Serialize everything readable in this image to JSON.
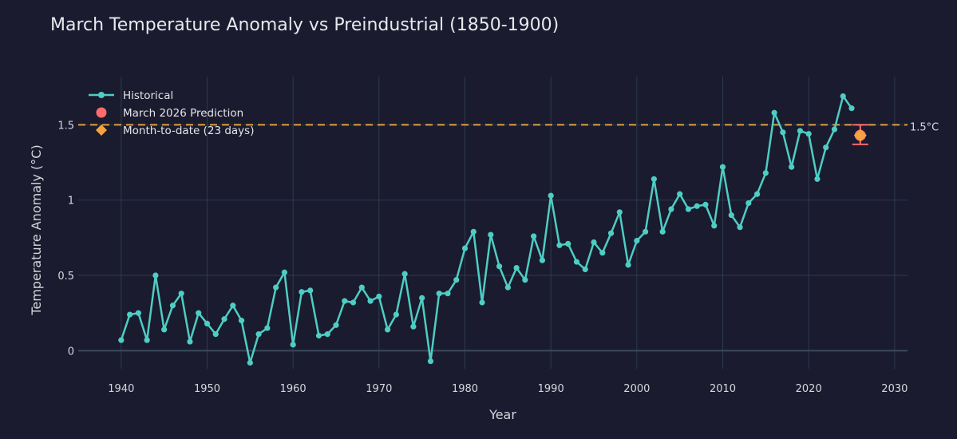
{
  "chart_data": {
    "type": "line",
    "title": "March Temperature Anomaly vs Preindustrial (1850-1900)",
    "xlabel": "Year",
    "ylabel": "Temperature Anomaly (°C)",
    "xlim": [
      1935,
      2031.5
    ],
    "ylim": [
      -0.12,
      1.82
    ],
    "x_ticks": [
      1940,
      1950,
      1960,
      1970,
      1980,
      1990,
      2000,
      2010,
      2020,
      2030
    ],
    "y_ticks": [
      0,
      0.5,
      1,
      1.5
    ],
    "y_tick_labels": [
      "0",
      "0.5",
      "1",
      "1.5"
    ],
    "grid": true,
    "legend_position": "top-left",
    "threshold": {
      "value": 1.5,
      "label": "1.5°C",
      "color": "#e0a040"
    },
    "series": [
      {
        "name": "Historical",
        "color": "#4ecdc4",
        "x": [
          1940,
          1941,
          1942,
          1943,
          1944,
          1945,
          1946,
          1947,
          1948,
          1949,
          1950,
          1951,
          1952,
          1953,
          1954,
          1955,
          1956,
          1957,
          1958,
          1959,
          1960,
          1961,
          1962,
          1963,
          1964,
          1965,
          1966,
          1967,
          1968,
          1969,
          1970,
          1971,
          1972,
          1973,
          1974,
          1975,
          1976,
          1977,
          1978,
          1979,
          1980,
          1981,
          1982,
          1983,
          1984,
          1985,
          1986,
          1987,
          1988,
          1989,
          1990,
          1991,
          1992,
          1993,
          1994,
          1995,
          1996,
          1997,
          1998,
          1999,
          2000,
          2001,
          2002,
          2003,
          2004,
          2005,
          2006,
          2007,
          2008,
          2009,
          2010,
          2011,
          2012,
          2013,
          2014,
          2015,
          2016,
          2017,
          2018,
          2019,
          2020,
          2021,
          2022,
          2023,
          2024,
          2025
        ],
        "y": [
          0.07,
          0.24,
          0.25,
          0.07,
          0.5,
          0.14,
          0.3,
          0.38,
          0.06,
          0.25,
          0.18,
          0.11,
          0.21,
          0.3,
          0.2,
          -0.08,
          0.11,
          0.15,
          0.42,
          0.52,
          0.04,
          0.39,
          0.4,
          0.1,
          0.11,
          0.17,
          0.33,
          0.32,
          0.42,
          0.33,
          0.36,
          0.14,
          0.24,
          0.51,
          0.16,
          0.35,
          -0.07,
          0.38,
          0.38,
          0.47,
          0.68,
          0.79,
          0.32,
          0.77,
          0.56,
          0.42,
          0.55,
          0.47,
          0.76,
          0.6,
          1.03,
          0.7,
          0.71,
          0.59,
          0.54,
          0.72,
          0.65,
          0.78,
          0.92,
          0.57,
          0.73,
          0.79,
          1.14,
          0.79,
          0.94,
          1.04,
          0.94,
          0.96,
          0.97,
          0.83,
          1.22,
          0.9,
          0.82,
          0.98,
          1.04,
          1.18,
          1.58,
          1.45,
          1.22,
          1.46,
          1.44,
          1.14,
          1.35,
          1.47,
          1.69,
          1.61
        ]
      },
      {
        "name": "March 2026 Prediction",
        "color": "#ff6b6b",
        "x": [
          2026
        ],
        "y": [
          1.43
        ],
        "error": [
          1.37,
          1.5
        ]
      },
      {
        "name": "Month-to-date (23 days)",
        "color": "#f4a340",
        "x": [
          2026
        ],
        "y": [
          1.43
        ]
      }
    ]
  }
}
